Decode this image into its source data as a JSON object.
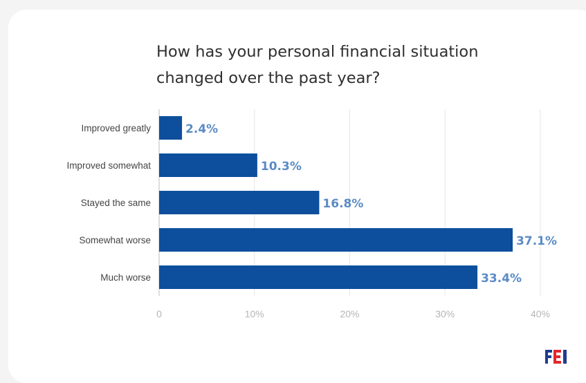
{
  "chart_data": {
    "type": "bar",
    "orientation": "horizontal",
    "title_lines": [
      "How has your personal financial situation",
      "changed over the past year?"
    ],
    "categories": [
      "Improved greatly",
      "Improved somewhat",
      "Stayed the same",
      "Somewhat worse",
      "Much worse"
    ],
    "values": [
      2.4,
      10.3,
      16.8,
      37.1,
      33.4
    ],
    "value_labels": [
      "2.4%",
      "10.3%",
      "16.8%",
      "37.1%",
      "33.4%"
    ],
    "xticks": [
      "0",
      "10%",
      "20%",
      "30%",
      "40%"
    ],
    "xlim": [
      0,
      40
    ],
    "grid": true,
    "colors": {
      "bar": "#0d4f9c",
      "value_label": "#5b8bc4",
      "category_label": "#444444",
      "tick": "#b5b5b5",
      "grid": "#e6e6e6"
    }
  },
  "brand": {
    "logo_text": "FEI",
    "colors": [
      "#1f3c8f",
      "#e2272e"
    ]
  }
}
